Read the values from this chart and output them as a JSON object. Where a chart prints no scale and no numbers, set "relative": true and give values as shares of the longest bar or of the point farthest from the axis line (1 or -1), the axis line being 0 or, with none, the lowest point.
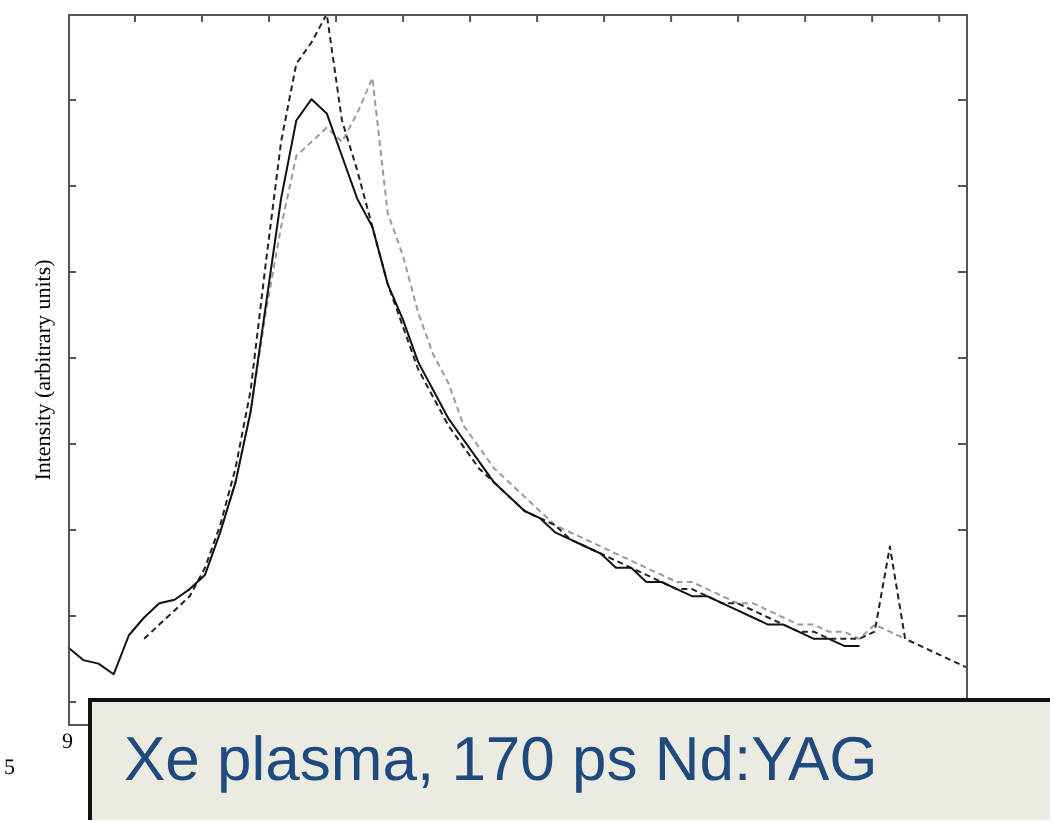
{
  "chart_data": {
    "type": "line",
    "relative": true,
    "ylabel": "Intensity (arbitrary units)",
    "annotations": [
      "9",
      "5",
      "Xe plasma, 170 ps Nd:YAG"
    ],
    "categories": [
      null,
      null,
      null,
      null,
      null,
      null,
      null,
      null,
      null,
      null,
      null,
      null,
      null,
      null,
      null,
      null,
      null,
      null,
      null,
      null,
      null,
      null,
      null,
      null,
      null,
      null,
      null,
      null,
      null,
      null,
      null,
      null,
      null,
      null,
      null,
      null,
      null,
      null,
      null,
      null,
      null,
      null,
      null,
      null,
      null,
      null,
      null,
      null,
      null,
      null,
      null,
      null,
      null,
      null,
      null,
      null,
      null,
      null,
      null,
      null
    ],
    "marker": "none",
    "legend": false,
    "series": [
      {
        "color": "#111111",
        "line_style": "solid",
        "values": [
          0.108,
          0.09,
          0.085,
          0.07,
          0.125,
          0.15,
          0.17,
          0.175,
          0.19,
          0.21,
          0.27,
          0.34,
          0.44,
          0.59,
          0.74,
          0.85,
          0.88,
          0.86,
          0.8,
          0.74,
          0.7,
          0.62,
          0.57,
          0.51,
          0.47,
          0.43,
          0.4,
          0.37,
          0.34,
          0.32,
          0.3,
          0.29,
          0.27,
          0.26,
          0.25,
          0.24,
          0.22,
          0.22,
          0.2,
          0.2,
          0.19,
          0.18,
          0.18,
          0.17,
          0.16,
          0.15,
          0.14,
          0.14,
          0.13,
          0.12,
          0.12,
          0.11,
          0.11,
          null,
          null,
          null,
          null,
          null,
          null,
          null
        ]
      },
      {
        "color": "#222222",
        "line_style": "dashed",
        "values": [
          null,
          null,
          null,
          null,
          null,
          0.12,
          0.14,
          0.16,
          0.18,
          0.22,
          0.28,
          0.36,
          0.47,
          0.65,
          0.82,
          0.93,
          0.96,
          1.0,
          0.85,
          0.78,
          0.7,
          0.62,
          0.56,
          0.5,
          0.46,
          0.42,
          0.39,
          0.36,
          0.34,
          0.32,
          0.3,
          0.29,
          0.28,
          0.26,
          0.25,
          0.24,
          0.23,
          0.22,
          0.21,
          0.2,
          0.19,
          0.19,
          0.18,
          0.17,
          0.17,
          0.16,
          0.15,
          0.14,
          0.13,
          0.13,
          0.12,
          0.12,
          0.12,
          0.13,
          0.25,
          0.12,
          0.11,
          0.1,
          0.09,
          0.08
        ]
      },
      {
        "color": "#9a9a9a",
        "line_style": "dashed",
        "values": [
          null,
          null,
          null,
          null,
          null,
          null,
          null,
          null,
          null,
          null,
          0.27,
          0.34,
          0.44,
          0.58,
          0.7,
          0.8,
          0.82,
          0.84,
          0.82,
          0.86,
          0.91,
          0.72,
          0.66,
          0.58,
          0.52,
          0.48,
          0.42,
          0.39,
          0.36,
          0.34,
          0.32,
          0.3,
          0.28,
          0.27,
          0.26,
          0.25,
          0.24,
          0.23,
          0.22,
          0.21,
          0.2,
          0.2,
          0.19,
          0.18,
          0.17,
          0.17,
          0.16,
          0.15,
          0.14,
          0.14,
          0.13,
          0.13,
          0.12,
          0.14,
          0.13,
          0.12,
          null,
          null,
          null,
          null
        ]
      }
    ]
  }
}
